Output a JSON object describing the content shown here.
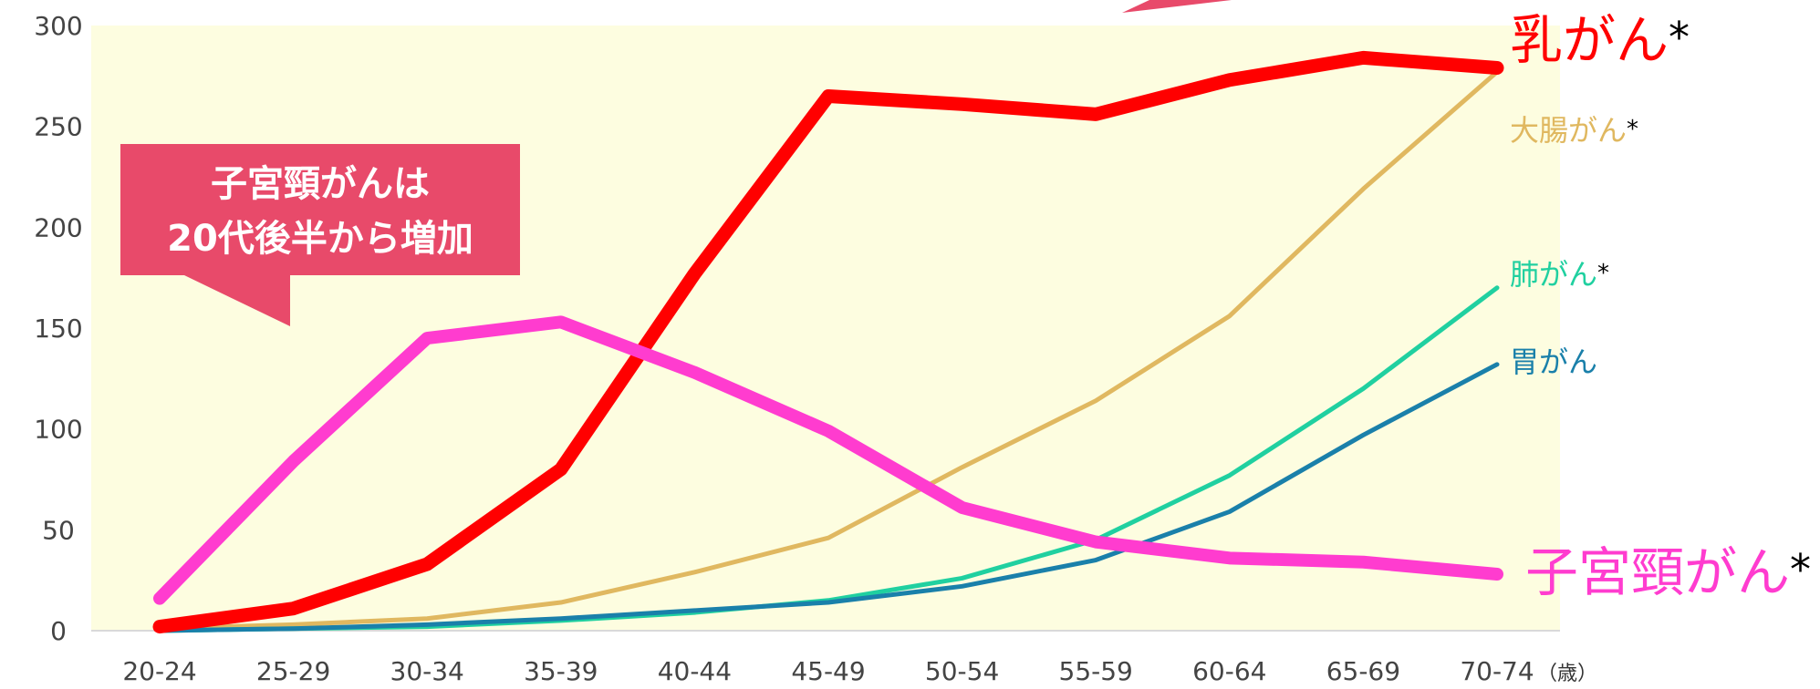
{
  "chart_data": {
    "type": "line",
    "categories": [
      "20-24",
      "25-29",
      "30-34",
      "35-39",
      "40-44",
      "45-49",
      "50-54",
      "55-59",
      "60-64",
      "65-69",
      "70-74"
    ],
    "x_unit": "（歳）",
    "ylim": [
      0,
      300
    ],
    "yticks": [
      "0",
      "50",
      "100",
      "150",
      "200",
      "250",
      "300"
    ],
    "grid": false,
    "series": [
      {
        "name": "乳がん",
        "mark": "*",
        "color": "#ff0000",
        "values": [
          2,
          11,
          33,
          80,
          177,
          265,
          261,
          256,
          273,
          284,
          279
        ]
      },
      {
        "name": "大腸がん",
        "mark": "*",
        "color": "#e0b860",
        "values": [
          1,
          3,
          6,
          14,
          29,
          46,
          81,
          114,
          156,
          219,
          277
        ]
      },
      {
        "name": "肺がん",
        "mark": "*",
        "color": "#20d0a0",
        "values": [
          0,
          1,
          2,
          5,
          9,
          15,
          26,
          45,
          77,
          120,
          170
        ]
      },
      {
        "name": "胃がん",
        "mark": "",
        "color": "#1a80aa",
        "values": [
          0,
          1,
          3,
          6,
          10,
          14,
          22,
          35,
          59,
          97,
          132
        ]
      },
      {
        "name": "子宮頸がん",
        "mark": "*",
        "color": "#ff3ccf",
        "values": [
          16,
          84,
          145,
          153,
          128,
          99,
          61,
          44,
          36,
          34,
          28
        ]
      }
    ],
    "annotation": {
      "lines": [
        "子宮頸がんは",
        "20代後半から増加"
      ],
      "color": "#e84a6a"
    }
  }
}
